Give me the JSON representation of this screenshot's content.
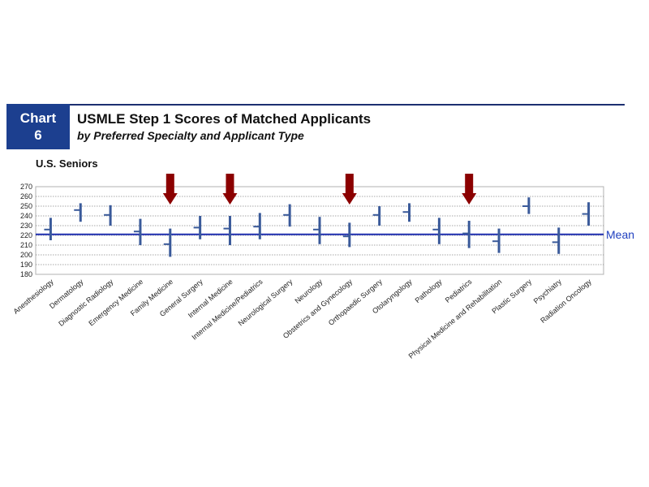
{
  "header": {
    "badge_line1": "Chart",
    "badge_line2": "6",
    "title": "USMLE Step 1 Scores of Matched Applicants",
    "subtitle": "by Preferred Specialty and Applicant Type",
    "section_label": "U.S. Seniors"
  },
  "colors": {
    "range_bar": "#3a5a9a",
    "mean_line": "#1f2fb0",
    "arrow": "#8b0000",
    "brand": "#1c3f8f"
  },
  "chart_data": {
    "type": "range",
    "title": "USMLE Step 1 Scores of Matched Applicants",
    "subtitle": "by Preferred Specialty and Applicant Type",
    "ylim": [
      180,
      270
    ],
    "yticks": [
      180,
      190,
      200,
      210,
      220,
      230,
      240,
      250,
      260,
      270
    ],
    "grid": true,
    "mean_value": 221,
    "mean_label": "Mean",
    "categories": [
      "Anesthesiology",
      "Dermatology",
      "Diagnostic Radiology",
      "Emergency Medicine",
      "Family Medicine",
      "General Surgery",
      "Internal Medicine",
      "Internal Medicine/Pediatrics",
      "Neurological Surgery",
      "Neurology",
      "Obstetrics and Gynecology",
      "Orthopaedic Surgery",
      "Otolaryngology",
      "Pathology",
      "Pediatrics",
      "Physical Medicine and Rehabilitation",
      "Plastic Surgery",
      "Psychiatry",
      "Radiation Oncology"
    ],
    "series": [
      {
        "values": [
          {
            "low": 215,
            "high": 238,
            "median": 226
          },
          {
            "low": 234,
            "high": 253,
            "median": 246
          },
          {
            "low": 230,
            "high": 251,
            "median": 241
          },
          {
            "low": 210,
            "high": 237,
            "median": 224
          },
          {
            "low": 198,
            "high": 227,
            "median": 211
          },
          {
            "low": 216,
            "high": 240,
            "median": 228
          },
          {
            "low": 210,
            "high": 240,
            "median": 227
          },
          {
            "low": 216,
            "high": 243,
            "median": 229
          },
          {
            "low": 229,
            "high": 252,
            "median": 241
          },
          {
            "low": 211,
            "high": 239,
            "median": 226
          },
          {
            "low": 208,
            "high": 233,
            "median": 219
          },
          {
            "low": 230,
            "high": 250,
            "median": 241
          },
          {
            "low": 234,
            "high": 253,
            "median": 244
          },
          {
            "low": 211,
            "high": 238,
            "median": 226
          },
          {
            "low": 207,
            "high": 235,
            "median": 222
          },
          {
            "low": 202,
            "high": 227,
            "median": 214
          },
          {
            "low": 242,
            "high": 259,
            "median": 250
          },
          {
            "low": 201,
            "high": 228,
            "median": 213
          },
          {
            "low": 230,
            "high": 254,
            "median": 242
          }
        ]
      }
    ],
    "highlighted": [
      "Family Medicine",
      "Internal Medicine",
      "Obstetrics and Gynecology",
      "Pediatrics"
    ]
  }
}
